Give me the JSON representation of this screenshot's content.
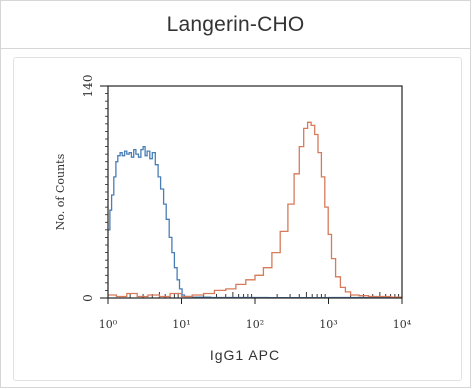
{
  "panel": {
    "title": "Langerin-CHO"
  },
  "chart_data": {
    "type": "line",
    "title": "Langerin-CHO",
    "xlabel": "IgG1 APC",
    "ylabel": "No. of Counts",
    "x_scale": "log",
    "xlim": [
      1,
      10000
    ],
    "ylim": [
      0,
      140
    ],
    "x_ticks": [
      {
        "value": 1,
        "label": "10⁰"
      },
      {
        "value": 10,
        "label": "10¹"
      },
      {
        "value": 100,
        "label": "10²"
      },
      {
        "value": 1000,
        "label": "10³"
      },
      {
        "value": 10000,
        "label": "10⁴"
      }
    ],
    "y_ticks": [
      {
        "value": 0,
        "label": "0"
      },
      {
        "value": 140,
        "label": "140"
      }
    ],
    "series": [
      {
        "color": "#4a7fb5",
        "points": [
          [
            1.02,
            45
          ],
          [
            1.06,
            58
          ],
          [
            1.12,
            68
          ],
          [
            1.2,
            80
          ],
          [
            1.28,
            90
          ],
          [
            1.36,
            94
          ],
          [
            1.46,
            96
          ],
          [
            1.56,
            94
          ],
          [
            1.68,
            97
          ],
          [
            1.8,
            95
          ],
          [
            1.94,
            96
          ],
          [
            2.08,
            93
          ],
          [
            2.24,
            98
          ],
          [
            2.4,
            95
          ],
          [
            2.6,
            93
          ],
          [
            2.8,
            98
          ],
          [
            3.0,
            100
          ],
          [
            3.2,
            94
          ],
          [
            3.4,
            97
          ],
          [
            3.7,
            92
          ],
          [
            4.0,
            96
          ],
          [
            4.4,
            88
          ],
          [
            4.8,
            80
          ],
          [
            5.2,
            72
          ],
          [
            5.7,
            62
          ],
          [
            6.2,
            52
          ],
          [
            6.8,
            40
          ],
          [
            7.4,
            30
          ],
          [
            8.0,
            20
          ],
          [
            8.7,
            12
          ],
          [
            9.4,
            6
          ],
          [
            10.2,
            2
          ],
          [
            11,
            1
          ],
          [
            14,
            0.5
          ],
          [
            25,
            0.3
          ],
          [
            60,
            0.3
          ],
          [
            150,
            0.2
          ],
          [
            400,
            0.2
          ],
          [
            1000,
            0.3
          ],
          [
            3000,
            0.2
          ],
          [
            10000,
            0.2
          ]
        ]
      },
      {
        "color": "#d77a5a",
        "points": [
          [
            1.0,
            2
          ],
          [
            1.3,
            1
          ],
          [
            1.8,
            3
          ],
          [
            2.5,
            1
          ],
          [
            3.5,
            2
          ],
          [
            5,
            1
          ],
          [
            7,
            3
          ],
          [
            10,
            1
          ],
          [
            14,
            2
          ],
          [
            20,
            3
          ],
          [
            28,
            5
          ],
          [
            40,
            6
          ],
          [
            55,
            9
          ],
          [
            75,
            12
          ],
          [
            100,
            15
          ],
          [
            130,
            20
          ],
          [
            170,
            30
          ],
          [
            220,
            44
          ],
          [
            280,
            62
          ],
          [
            340,
            82
          ],
          [
            400,
            100
          ],
          [
            460,
            112
          ],
          [
            520,
            116
          ],
          [
            580,
            114
          ],
          [
            650,
            108
          ],
          [
            720,
            96
          ],
          [
            800,
            80
          ],
          [
            890,
            60
          ],
          [
            990,
            42
          ],
          [
            1100,
            26
          ],
          [
            1250,
            14
          ],
          [
            1450,
            7
          ],
          [
            1700,
            4
          ],
          [
            2000,
            2
          ],
          [
            2600,
            1.5
          ],
          [
            3500,
            1
          ],
          [
            5000,
            1
          ],
          [
            7000,
            0.5
          ],
          [
            10000,
            0.5
          ]
        ]
      }
    ]
  }
}
